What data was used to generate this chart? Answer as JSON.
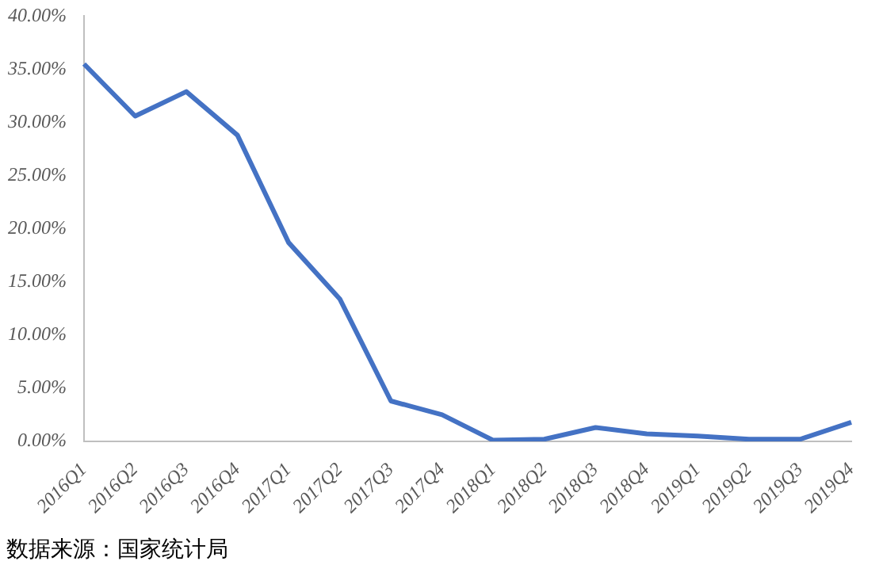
{
  "chart_data": {
    "type": "line",
    "categories": [
      "2016Q1",
      "2016Q2",
      "2016Q3",
      "2016Q4",
      "2017Q1",
      "2017Q2",
      "2017Q3",
      "2017Q4",
      "2018Q1",
      "2018Q2",
      "2018Q3",
      "2018Q4",
      "2019Q1",
      "2019Q2",
      "2019Q3",
      "2019Q4"
    ],
    "series": [
      {
        "color": "#4472c4",
        "values": [
          35.5,
          30.6,
          32.9,
          28.8,
          18.7,
          13.4,
          3.8,
          2.5,
          0.1,
          0.2,
          1.3,
          0.7,
          0.5,
          0.2,
          0.2,
          1.8
        ]
      }
    ],
    "ylim": [
      0,
      40
    ],
    "yticks": [
      {
        "value": 0,
        "label": "0.00%"
      },
      {
        "value": 5,
        "label": "5.00%"
      },
      {
        "value": 10,
        "label": "10.00%"
      },
      {
        "value": 15,
        "label": "15.00%"
      },
      {
        "value": 20,
        "label": "20.00%"
      },
      {
        "value": 25,
        "label": "25.00%"
      },
      {
        "value": 30,
        "label": "30.00%"
      },
      {
        "value": 35,
        "label": "35.00%"
      },
      {
        "value": 40,
        "label": "40.00%"
      }
    ],
    "grid": false,
    "legend": false,
    "marker": "none",
    "line_style": "solid",
    "annotations": [
      "数据来源：国家统计局"
    ]
  }
}
